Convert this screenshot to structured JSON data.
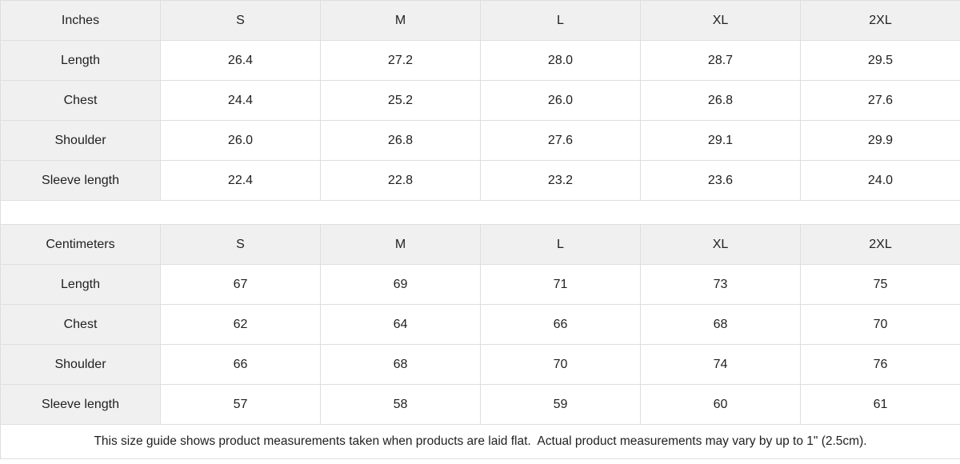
{
  "colors": {
    "header_bg": "#f0f0f0",
    "cell_bg": "#ffffff",
    "border": "#dedede",
    "text": "#1f1f1f"
  },
  "tables": [
    {
      "unit_label": "Inches",
      "sizes": [
        "S",
        "M",
        "L",
        "XL",
        "2XL"
      ],
      "rows": [
        {
          "label": "Length",
          "values": [
            "26.4",
            "27.2",
            "28.0",
            "28.7",
            "29.5"
          ]
        },
        {
          "label": "Chest",
          "values": [
            "24.4",
            "25.2",
            "26.0",
            "26.8",
            "27.6"
          ]
        },
        {
          "label": "Shoulder",
          "values": [
            "26.0",
            "26.8",
            "27.6",
            "29.1",
            "29.9"
          ]
        },
        {
          "label": "Sleeve length",
          "values": [
            "22.4",
            "22.8",
            "23.2",
            "23.6",
            "24.0"
          ]
        }
      ]
    },
    {
      "unit_label": "Centimeters",
      "sizes": [
        "S",
        "M",
        "L",
        "XL",
        "2XL"
      ],
      "rows": [
        {
          "label": "Length",
          "values": [
            "67",
            "69",
            "71",
            "73",
            "75"
          ]
        },
        {
          "label": "Chest",
          "values": [
            "62",
            "64",
            "66",
            "68",
            "70"
          ]
        },
        {
          "label": "Shoulder",
          "values": [
            "66",
            "68",
            "70",
            "74",
            "76"
          ]
        },
        {
          "label": "Sleeve length",
          "values": [
            "57",
            "58",
            "59",
            "60",
            "61"
          ]
        }
      ]
    }
  ],
  "footer": {
    "note": "This size guide shows product measurements taken when products are laid flat.  Actual product measurements may vary by up to 1\" (2.5cm)."
  },
  "chart_data": [
    {
      "type": "table",
      "title": "Inches",
      "columns": [
        "Inches",
        "S",
        "M",
        "L",
        "XL",
        "2XL"
      ],
      "rows": [
        [
          "Length",
          26.4,
          27.2,
          28.0,
          28.7,
          29.5
        ],
        [
          "Chest",
          24.4,
          25.2,
          26.0,
          26.8,
          27.6
        ],
        [
          "Shoulder",
          26.0,
          26.8,
          27.6,
          29.1,
          29.9
        ],
        [
          "Sleeve length",
          22.4,
          22.8,
          23.2,
          23.6,
          24.0
        ]
      ]
    },
    {
      "type": "table",
      "title": "Centimeters",
      "columns": [
        "Centimeters",
        "S",
        "M",
        "L",
        "XL",
        "2XL"
      ],
      "rows": [
        [
          "Length",
          67,
          69,
          71,
          73,
          75
        ],
        [
          "Chest",
          62,
          64,
          66,
          68,
          70
        ],
        [
          "Shoulder",
          66,
          68,
          70,
          74,
          76
        ],
        [
          "Sleeve length",
          57,
          58,
          59,
          60,
          61
        ]
      ]
    }
  ]
}
